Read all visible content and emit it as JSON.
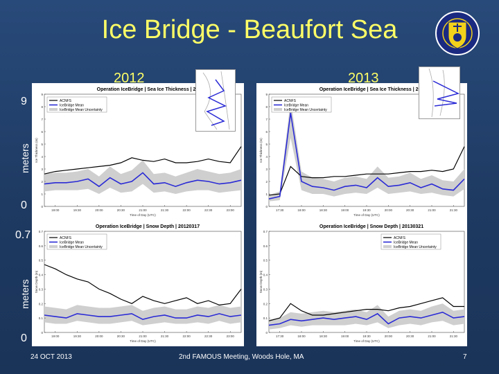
{
  "slide": {
    "title": "Ice Bridge - Beaufort Sea",
    "years": [
      "2012",
      "2013"
    ],
    "thickness_axis": {
      "max": "9",
      "min": "0",
      "label": "meters"
    },
    "snow_axis": {
      "max": "0.7",
      "min": "0",
      "label": "meters"
    },
    "footer": {
      "date": "24 OCT 2013",
      "event": "2nd FAMOUS Meeting, Woods Hole, MA",
      "page": "7"
    },
    "colors": {
      "background": "#1f3b63",
      "title": "#ffff66",
      "acnfs": "#000000",
      "icebridge": "#2a2ad6",
      "uncertainty": "#cfcfcf",
      "logo_ring": "#1a2a80",
      "logo_shield": "#f2d21b"
    }
  },
  "panels": [
    {
      "id": "thick2012",
      "title": "Operation IceBridge | Sea Ice Thickness | 20",
      "ylabel": "Ice Thickness (m)",
      "xlabel": "Time of Day (UTC)",
      "legend": [
        "ACNFS",
        "IceBridge Mean",
        "IceBridge Mean Uncertainty"
      ],
      "yticks": [
        "0",
        "1",
        "2",
        "3",
        "4",
        "5",
        "6",
        "7",
        "8",
        "9"
      ],
      "xticks": [
        "19:00",
        "19:30",
        "20:00",
        "20:30",
        "21:00",
        "21:30",
        "22:00",
        "22:30",
        "23:00"
      ]
    },
    {
      "id": "thick2013",
      "title": "Operation IceBridge | Sea Ice Thickness | 201",
      "ylabel": "Ice Thickness (m)",
      "xlabel": "Time of Day (UTC)",
      "legend": [
        "ACNFS",
        "IceBridge Mean",
        "IceBridge Mean Uncertainty"
      ],
      "yticks": [
        "0",
        "1",
        "2",
        "3",
        "4",
        "5",
        "6",
        "7",
        "8",
        "9"
      ],
      "xticks": [
        "17:30",
        "18:00",
        "18:30",
        "19:00",
        "19:30",
        "20:00",
        "20:30",
        "21:00",
        "21:30"
      ]
    },
    {
      "id": "snow2012",
      "title": "Operation IceBridge | Snow Depth | 20120317",
      "ylabel": "Snow Depth (m)",
      "xlabel": "Time of Day (UTC)",
      "legend": [
        "ACNFS",
        "IceBridge Mean",
        "IceBridge Mean Uncertainty"
      ],
      "yticks": [
        "0",
        "0.1",
        "0.2",
        "0.3",
        "0.4",
        "0.5",
        "0.6",
        "0.7"
      ],
      "xticks": [
        "19:00",
        "19:30",
        "20:00",
        "20:30",
        "21:00",
        "21:30",
        "22:00",
        "22:30",
        "23:00"
      ]
    },
    {
      "id": "snow2013",
      "title": "Operation IceBridge | Snow Depth | 20130321",
      "ylabel": "Snow Depth (m)",
      "xlabel": "Time of Day (UTC)",
      "legend": [
        "ACNFS",
        "IceBridge Mean",
        "IceBridge Mean Uncertainty"
      ],
      "yticks": [
        "0",
        "0.1",
        "0.2",
        "0.3",
        "0.4",
        "0.5",
        "0.6",
        "0.7"
      ],
      "xticks": [
        "17:30",
        "18:00",
        "18:30",
        "19:00",
        "19:30",
        "20:00",
        "20:30",
        "21:00",
        "21:30"
      ]
    }
  ],
  "chart_data": [
    {
      "type": "line",
      "title": "Operation IceBridge | Sea Ice Thickness | 20",
      "ylabel": "Ice Thickness (m)",
      "xlabel": "Time of Day (UTC)",
      "ylim": [
        0,
        9
      ],
      "xlim": [
        18.75,
        23.25
      ],
      "x": [
        18.75,
        19.0,
        19.25,
        19.5,
        19.75,
        20.0,
        20.25,
        20.5,
        20.75,
        21.0,
        21.25,
        21.5,
        21.75,
        22.0,
        22.25,
        22.5,
        22.75,
        23.0,
        23.25
      ],
      "series": [
        {
          "name": "ACNFS",
          "values": [
            2.6,
            2.8,
            2.9,
            3.0,
            3.1,
            3.2,
            3.3,
            3.5,
            3.9,
            3.7,
            3.6,
            3.8,
            3.5,
            3.5,
            3.6,
            3.8,
            3.6,
            3.5,
            4.8
          ]
        },
        {
          "name": "IceBridge Mean",
          "values": [
            1.8,
            1.9,
            1.9,
            2.0,
            2.2,
            1.6,
            2.3,
            1.8,
            2.0,
            2.7,
            1.8,
            1.9,
            1.6,
            1.9,
            2.1,
            2.0,
            1.8,
            1.9,
            2.1
          ]
        },
        {
          "name": "IceBridge Mean Uncertainty",
          "lower": [
            1.2,
            1.3,
            1.3,
            1.3,
            1.4,
            1.0,
            1.5,
            1.1,
            1.2,
            1.8,
            1.1,
            1.2,
            1.0,
            1.2,
            1.3,
            1.3,
            1.1,
            1.2,
            1.3
          ],
          "upper": [
            2.6,
            2.7,
            2.7,
            2.8,
            3.0,
            2.4,
            3.2,
            2.6,
            2.9,
            3.7,
            2.6,
            2.7,
            2.4,
            2.7,
            3.0,
            2.8,
            2.6,
            2.7,
            3.0
          ]
        }
      ]
    },
    {
      "type": "line",
      "title": "Operation IceBridge | Sea Ice Thickness | 201",
      "ylabel": "Ice Thickness (m)",
      "xlabel": "Time of Day (UTC)",
      "ylim": [
        0,
        9
      ],
      "xlim": [
        17.25,
        21.75
      ],
      "x": [
        17.25,
        17.5,
        17.75,
        18.0,
        18.25,
        18.5,
        18.75,
        19.0,
        19.25,
        19.5,
        19.75,
        20.0,
        20.25,
        20.5,
        20.75,
        21.0,
        21.25,
        21.5,
        21.75
      ],
      "series": [
        {
          "name": "ACNFS",
          "values": [
            0.9,
            1.0,
            3.2,
            2.4,
            2.3,
            2.3,
            2.4,
            2.4,
            2.5,
            2.6,
            2.6,
            2.6,
            2.7,
            2.8,
            2.8,
            2.9,
            2.8,
            3.0,
            4.8
          ]
        },
        {
          "name": "IceBridge Mean",
          "values": [
            0.6,
            0.8,
            7.5,
            2.0,
            1.6,
            1.5,
            1.3,
            1.6,
            1.7,
            1.5,
            2.3,
            1.6,
            1.7,
            1.9,
            1.5,
            1.8,
            1.4,
            1.3,
            2.2
          ]
        },
        {
          "name": "IceBridge Mean Uncertainty",
          "lower": [
            0.4,
            0.5,
            5.5,
            1.3,
            1.0,
            1.0,
            0.8,
            1.0,
            1.1,
            1.0,
            1.5,
            1.0,
            1.1,
            1.2,
            1.0,
            1.1,
            0.9,
            0.8,
            1.4
          ],
          "upper": [
            0.9,
            1.2,
            8.5,
            2.8,
            2.3,
            2.2,
            2.0,
            2.3,
            2.4,
            2.2,
            3.2,
            2.3,
            2.4,
            2.7,
            2.2,
            2.5,
            2.1,
            2.0,
            3.0
          ]
        }
      ]
    },
    {
      "type": "line",
      "title": "Operation IceBridge | Snow Depth | 20120317",
      "ylabel": "Snow Depth (m)",
      "xlabel": "Time of Day (UTC)",
      "ylim": [
        0,
        0.7
      ],
      "xlim": [
        18.75,
        23.25
      ],
      "x": [
        18.75,
        19.0,
        19.25,
        19.5,
        19.75,
        20.0,
        20.25,
        20.5,
        20.75,
        21.0,
        21.25,
        21.5,
        21.75,
        22.0,
        22.25,
        22.5,
        22.75,
        23.0,
        23.25
      ],
      "series": [
        {
          "name": "ACNFS",
          "values": [
            0.47,
            0.44,
            0.4,
            0.37,
            0.35,
            0.3,
            0.27,
            0.23,
            0.2,
            0.25,
            0.22,
            0.2,
            0.22,
            0.24,
            0.2,
            0.22,
            0.19,
            0.2,
            0.3
          ]
        },
        {
          "name": "IceBridge Mean",
          "values": [
            0.12,
            0.11,
            0.1,
            0.13,
            0.12,
            0.11,
            0.11,
            0.12,
            0.13,
            0.09,
            0.11,
            0.12,
            0.1,
            0.1,
            0.12,
            0.11,
            0.13,
            0.11,
            0.12
          ]
        },
        {
          "name": "IceBridge Mean Uncertainty",
          "lower": [
            0.07,
            0.06,
            0.06,
            0.08,
            0.07,
            0.06,
            0.06,
            0.07,
            0.08,
            0.05,
            0.06,
            0.07,
            0.06,
            0.06,
            0.07,
            0.06,
            0.08,
            0.06,
            0.07
          ],
          "upper": [
            0.18,
            0.17,
            0.16,
            0.19,
            0.18,
            0.17,
            0.17,
            0.18,
            0.19,
            0.15,
            0.17,
            0.18,
            0.16,
            0.16,
            0.18,
            0.17,
            0.19,
            0.17,
            0.18
          ]
        }
      ]
    },
    {
      "type": "line",
      "title": "Operation IceBridge | Snow Depth | 20130321",
      "ylabel": "Snow Depth (m)",
      "xlabel": "Time of Day (UTC)",
      "ylim": [
        0,
        0.7
      ],
      "xlim": [
        17.25,
        21.75
      ],
      "x": [
        17.25,
        17.5,
        17.75,
        18.0,
        18.25,
        18.5,
        18.75,
        19.0,
        19.25,
        19.5,
        19.75,
        20.0,
        20.25,
        20.5,
        20.75,
        21.0,
        21.25,
        21.5,
        21.75
      ],
      "series": [
        {
          "name": "ACNFS",
          "values": [
            0.08,
            0.1,
            0.2,
            0.15,
            0.12,
            0.12,
            0.13,
            0.14,
            0.15,
            0.16,
            0.16,
            0.15,
            0.17,
            0.18,
            0.2,
            0.22,
            0.24,
            0.18,
            0.18
          ]
        },
        {
          "name": "IceBridge Mean",
          "values": [
            0.05,
            0.06,
            0.09,
            0.08,
            0.09,
            0.1,
            0.09,
            0.1,
            0.11,
            0.09,
            0.13,
            0.06,
            0.1,
            0.11,
            0.1,
            0.12,
            0.14,
            0.1,
            0.11
          ]
        },
        {
          "name": "IceBridge Mean Uncertainty",
          "lower": [
            0.02,
            0.03,
            0.05,
            0.04,
            0.05,
            0.05,
            0.05,
            0.05,
            0.06,
            0.05,
            0.07,
            0.03,
            0.05,
            0.06,
            0.05,
            0.07,
            0.08,
            0.05,
            0.06
          ],
          "upper": [
            0.09,
            0.1,
            0.14,
            0.13,
            0.14,
            0.15,
            0.14,
            0.15,
            0.16,
            0.14,
            0.19,
            0.11,
            0.15,
            0.16,
            0.15,
            0.18,
            0.2,
            0.15,
            0.16
          ]
        }
      ]
    }
  ]
}
